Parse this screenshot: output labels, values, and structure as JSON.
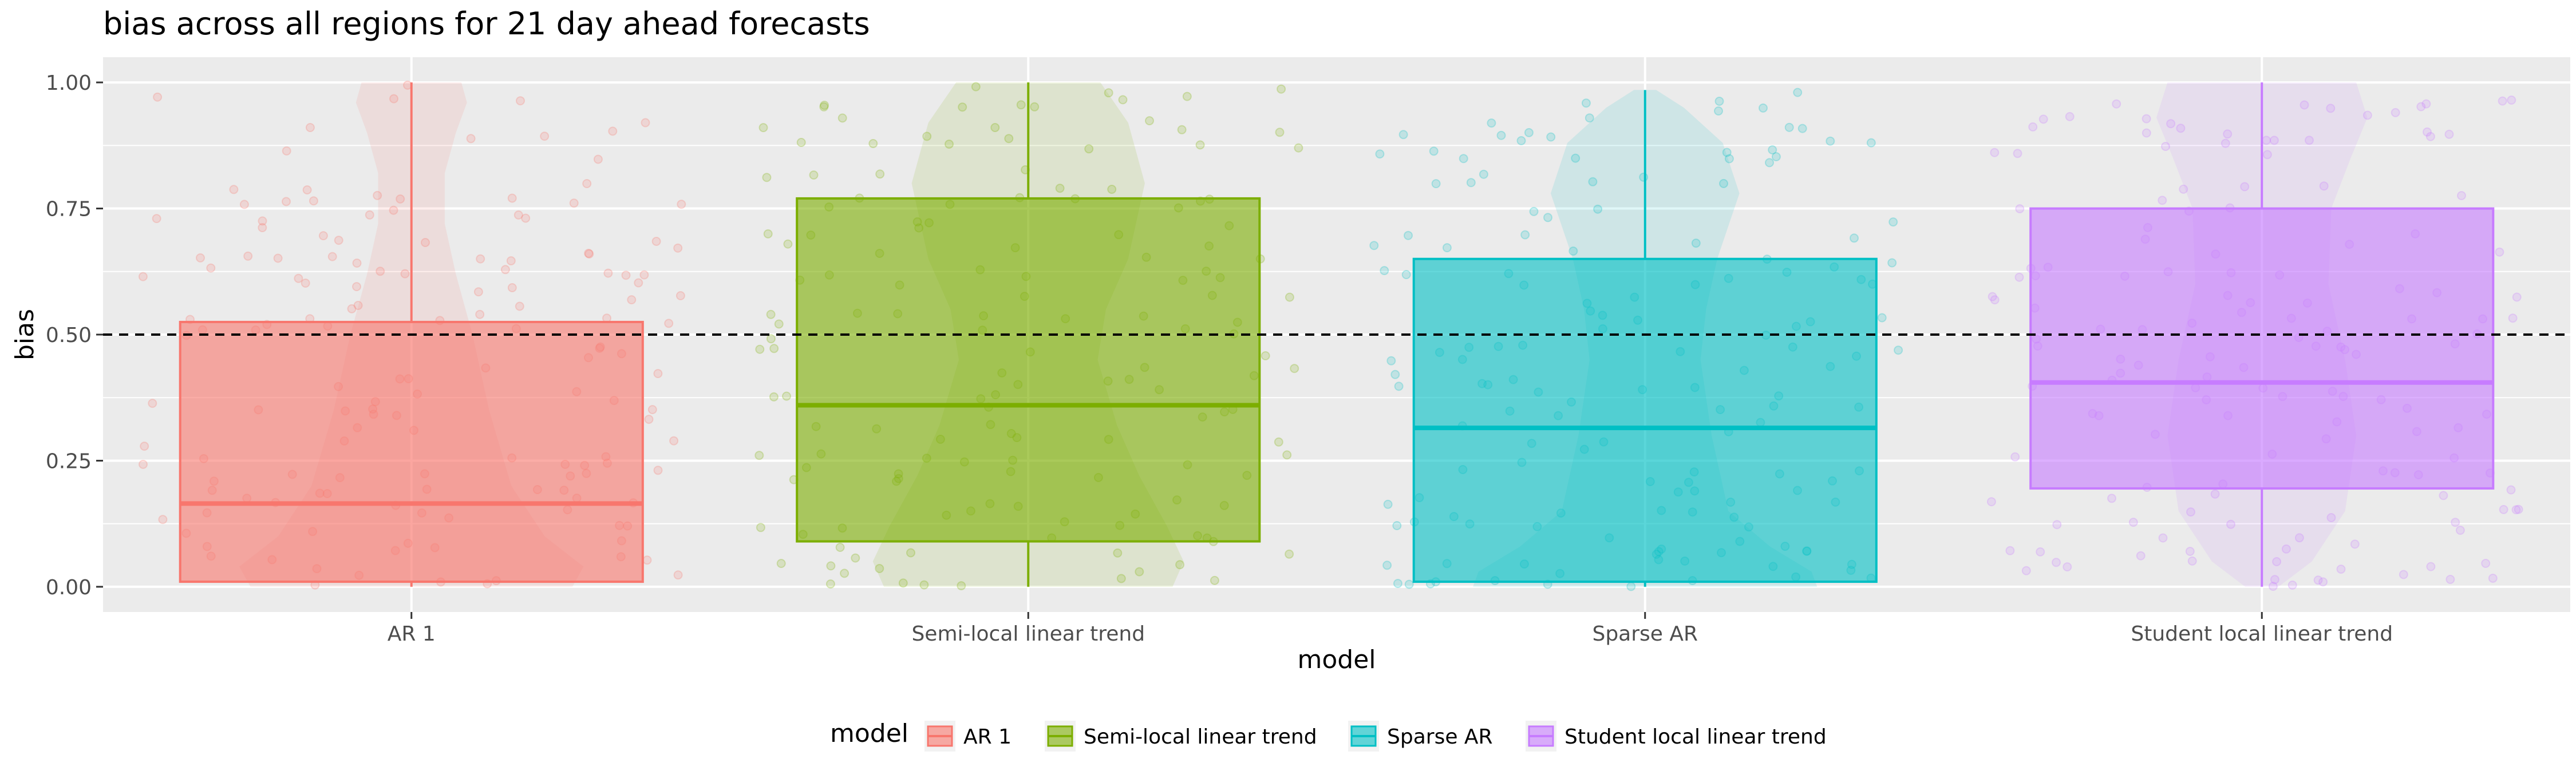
{
  "chart_data": {
    "type": "box",
    "title": "bias across all regions for 21 day ahead forecasts",
    "xlabel": "model",
    "ylabel": "bias",
    "ylim": [
      -0.05,
      1.05
    ],
    "y_ticks": [
      "0.00",
      "0.25",
      "0.50",
      "0.75",
      "1.00"
    ],
    "grid": true,
    "reference_line": {
      "y": 0.5,
      "style": "dashed"
    },
    "legend": {
      "title": "model",
      "position": "bottom"
    },
    "categories": [
      "AR 1",
      "Semi-local linear trend",
      "Sparse AR",
      "Student local linear trend"
    ],
    "series": [
      {
        "name": "AR 1",
        "color": "#F8766D",
        "min": 0.0,
        "q1": 0.01,
        "median": 0.165,
        "q3": 0.525,
        "max": 1.0
      },
      {
        "name": "Semi-local linear trend",
        "color": "#7CAE00",
        "min": 0.0,
        "q1": 0.09,
        "median": 0.36,
        "q3": 0.77,
        "max": 1.0
      },
      {
        "name": "Sparse AR",
        "color": "#00BFC4",
        "min": 0.0,
        "q1": 0.01,
        "median": 0.315,
        "q3": 0.65,
        "max": 0.985
      },
      {
        "name": "Student local linear trend",
        "color": "#C77CFF",
        "min": 0.0,
        "q1": 0.195,
        "median": 0.405,
        "q3": 0.75,
        "max": 1.0
      }
    ]
  }
}
